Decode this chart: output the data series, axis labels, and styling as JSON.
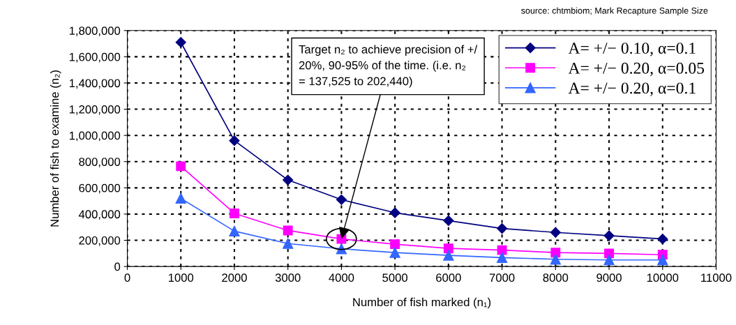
{
  "chart_data": {
    "type": "line",
    "xlabel": "Number of fish marked (n₁)",
    "ylabel": "Number of fish to examine (n₂)",
    "x": [
      1000,
      2000,
      3000,
      4000,
      5000,
      6000,
      7000,
      8000,
      9000,
      10000
    ],
    "series": [
      {
        "name": "A= +/− 0.10, α=0.1",
        "color": "#000080",
        "marker": "diamond",
        "values": [
          1710000,
          960000,
          660000,
          510000,
          410000,
          350000,
          290000,
          260000,
          235000,
          210000
        ]
      },
      {
        "name": "A= +/− 0.20, α=0.05",
        "color": "#ff00ff",
        "marker": "square",
        "values": [
          765000,
          405000,
          275000,
          210000,
          170000,
          138000,
          125000,
          106000,
          100000,
          90000
        ]
      },
      {
        "name": "A= +/− 0.20, α=0.1",
        "color": "#3366ff",
        "marker": "triangle",
        "values": [
          520000,
          270000,
          175000,
          135000,
          106000,
          85000,
          68000,
          55000,
          50000,
          50000
        ]
      }
    ],
    "xlim": [
      0,
      11000
    ],
    "xticks": [
      0,
      1000,
      2000,
      3000,
      4000,
      5000,
      6000,
      7000,
      8000,
      9000,
      10000,
      11000
    ],
    "ylim": [
      0,
      1800000
    ],
    "yticks": [
      {
        "value": 0,
        "label": "0"
      },
      {
        "value": 200000,
        "label": "200,000"
      },
      {
        "value": 400000,
        "label": "400,000"
      },
      {
        "value": 600000,
        "label": "600,000"
      },
      {
        "value": 800000,
        "label": "800,000"
      },
      {
        "value": 1000000,
        "label": "1,000,000"
      },
      {
        "value": 1200000,
        "label": "1,200,000"
      },
      {
        "value": 1400000,
        "label": "1,400,000"
      },
      {
        "value": 1600000,
        "label": "1,600,000"
      },
      {
        "value": 1800000,
        "label": "1,800,000"
      }
    ],
    "grid": true,
    "legend": "top right",
    "line_style": "solid",
    "annotations": [
      {
        "text": "Target n₂ to achieve precision of +/\n20%, 90-95% of the time. (i.e. n₂\n= 137,525 to 202,440)",
        "x": 4000,
        "y": 210000
      },
      "source: chtmbiom; Mark Recapture Sample Size"
    ]
  }
}
